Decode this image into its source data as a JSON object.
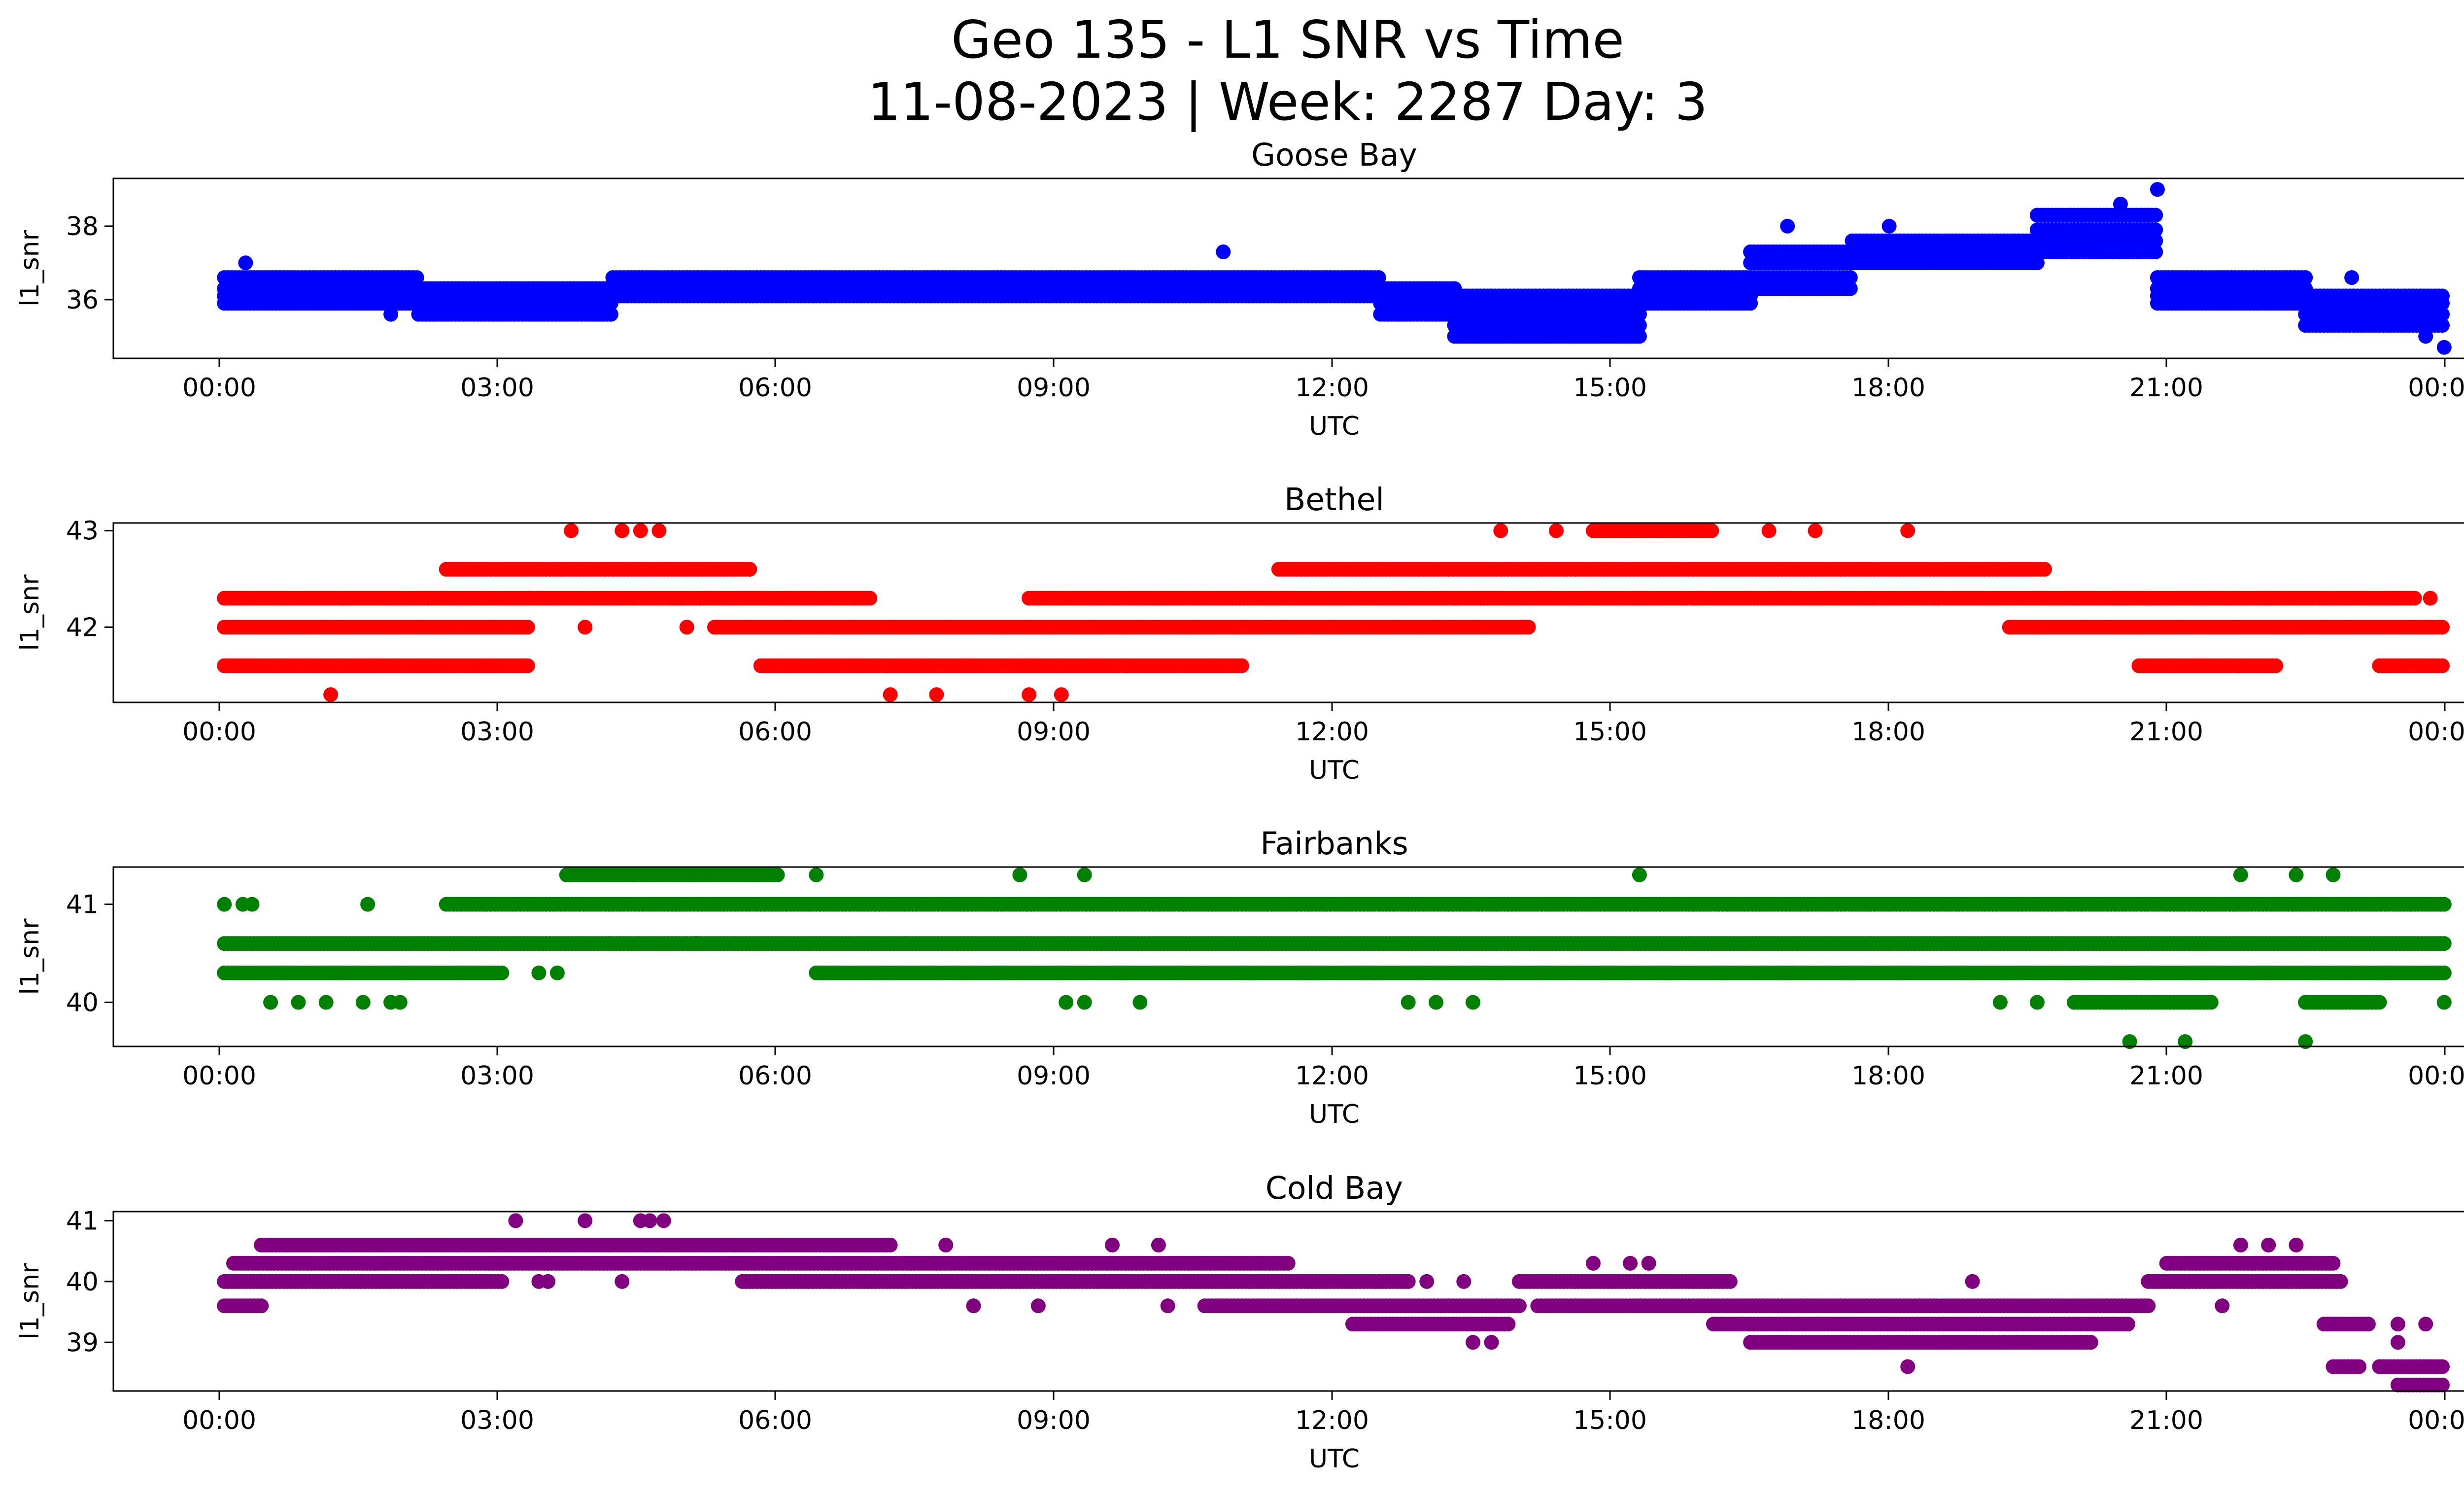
{
  "figure": {
    "title_line1": "Geo 135 - L1 SNR vs Time",
    "title_line2": "11-08-2023 | Week: 2287 Day: 3"
  },
  "chart_data": [
    {
      "type": "scatter",
      "title": "Goose Bay",
      "xlabel": "UTC",
      "ylabel": "l1_snr",
      "color": "#0000ff",
      "x_range_hours": [
        -1.2,
        25.2
      ],
      "x_ticks": [
        "00:00",
        "03:00",
        "06:00",
        "09:00",
        "12:00",
        "15:00",
        "18:00",
        "21:00",
        "00:00"
      ],
      "ylim": [
        34.4,
        39.3
      ],
      "y_ticks": [
        36,
        38
      ],
      "levels": [
        34.7,
        35.0,
        35.3,
        35.6,
        35.9,
        36.1,
        36.3,
        36.6,
        37.0,
        37.3,
        37.6,
        37.9,
        38.3,
        38.6,
        39.0
      ],
      "segments": [
        {
          "x": [
            0.0,
            2.1
          ],
          "levels": [
            36.6,
            36.3,
            36.1,
            35.9
          ]
        },
        {
          "x": [
            2.1,
            4.2
          ],
          "levels": [
            36.3,
            36.1,
            35.9,
            35.6
          ]
        },
        {
          "x": [
            4.2,
            8.0
          ],
          "levels": [
            36.6,
            36.3,
            36.1
          ]
        },
        {
          "x": [
            8.0,
            12.5
          ],
          "levels": [
            36.6,
            36.3,
            36.1
          ]
        },
        {
          "x": [
            12.5,
            13.3
          ],
          "levels": [
            36.3,
            36.1,
            35.9,
            35.6
          ]
        },
        {
          "x": [
            13.3,
            15.3
          ],
          "levels": [
            36.1,
            35.9,
            35.6,
            35.3,
            35.0
          ]
        },
        {
          "x": [
            15.3,
            16.5
          ],
          "levels": [
            36.6,
            36.3,
            36.1,
            35.9
          ]
        },
        {
          "x": [
            16.5,
            17.6
          ],
          "levels": [
            37.3,
            37.0,
            36.6,
            36.3
          ]
        },
        {
          "x": [
            17.6,
            19.6
          ],
          "levels": [
            37.6,
            37.3,
            37.0
          ]
        },
        {
          "x": [
            19.6,
            20.9
          ],
          "levels": [
            38.3,
            37.9,
            37.6,
            37.3
          ]
        },
        {
          "x": [
            20.9,
            22.5
          ],
          "levels": [
            36.6,
            36.3,
            36.1,
            35.9
          ]
        },
        {
          "x": [
            22.5,
            24.0
          ],
          "levels": [
            36.1,
            35.9,
            35.6,
            35.3
          ]
        }
      ],
      "points": [
        [
          0.23,
          37.0
        ],
        [
          1.8,
          35.6
        ],
        [
          2.3,
          35.6
        ],
        [
          10.8,
          37.3
        ],
        [
          16.9,
          38.0
        ],
        [
          18.0,
          38.0
        ],
        [
          20.5,
          38.6
        ],
        [
          20.9,
          39.0
        ],
        [
          23.8,
          35.0
        ],
        [
          24.0,
          34.7
        ],
        [
          23.0,
          36.6
        ]
      ]
    },
    {
      "type": "scatter",
      "title": "Bethel",
      "xlabel": "UTC",
      "ylabel": "l1_snr",
      "color": "#ff0000",
      "x_range_hours": [
        -1.2,
        25.2
      ],
      "x_ticks": [
        "00:00",
        "03:00",
        "06:00",
        "09:00",
        "12:00",
        "15:00",
        "18:00",
        "21:00",
        "00:00"
      ],
      "ylim": [
        41.22,
        43.08
      ],
      "y_ticks": [
        42,
        43
      ],
      "levels": [
        41.3,
        41.6,
        42.0,
        42.3,
        42.6,
        43.0
      ],
      "segments": [
        {
          "x": [
            0.0,
            3.3
          ],
          "levels": [
            42.3,
            42.0,
            41.6
          ]
        },
        {
          "x": [
            2.4,
            5.7
          ],
          "levels": [
            42.6
          ]
        },
        {
          "x": [
            3.3,
            6.5
          ],
          "levels": [
            42.3
          ]
        },
        {
          "x": [
            5.3,
            14.1
          ],
          "levels": [
            42.0
          ]
        },
        {
          "x": [
            5.8,
            11.0
          ],
          "levels": [
            41.6
          ]
        },
        {
          "x": [
            6.5,
            7.0
          ],
          "levels": [
            42.3
          ]
        },
        {
          "x": [
            8.7,
            20.8
          ],
          "levels": [
            42.3
          ]
        },
        {
          "x": [
            11.4,
            19.7
          ],
          "levels": [
            42.6
          ]
        },
        {
          "x": [
            14.8,
            16.1
          ],
          "levels": [
            43.0
          ]
        },
        {
          "x": [
            19.3,
            24.0
          ],
          "levels": [
            42.0
          ]
        },
        {
          "x": [
            20.7,
            22.2
          ],
          "levels": [
            41.6
          ]
        },
        {
          "x": [
            20.8,
            23.7
          ],
          "levels": [
            42.3
          ]
        },
        {
          "x": [
            23.3,
            24.0
          ],
          "levels": [
            41.6
          ]
        }
      ],
      "points": [
        [
          1.15,
          41.3
        ],
        [
          3.75,
          43.0
        ],
        [
          4.3,
          43.0
        ],
        [
          4.5,
          43.0
        ],
        [
          4.7,
          43.0
        ],
        [
          7.2,
          41.3
        ],
        [
          7.7,
          41.3
        ],
        [
          8.7,
          41.3
        ],
        [
          9.05,
          41.3
        ],
        [
          13.8,
          43.0
        ],
        [
          14.4,
          43.0
        ],
        [
          16.7,
          43.0
        ],
        [
          17.2,
          43.0
        ],
        [
          18.2,
          43.0
        ],
        [
          3.9,
          42.0
        ],
        [
          5.0,
          42.0
        ],
        [
          23.85,
          42.3
        ]
      ]
    },
    {
      "type": "scatter",
      "title": "Fairbanks",
      "xlabel": "UTC",
      "ylabel": "l1_snr",
      "color": "#008000",
      "x_range_hours": [
        -1.2,
        25.2
      ],
      "x_ticks": [
        "00:00",
        "03:00",
        "06:00",
        "09:00",
        "12:00",
        "15:00",
        "18:00",
        "21:00",
        "00:00"
      ],
      "ylim": [
        39.55,
        41.38
      ],
      "y_ticks": [
        40,
        41
      ],
      "levels": [
        39.6,
        40.0,
        40.3,
        40.6,
        41.0,
        41.3
      ],
      "segments": [
        {
          "x": [
            0.0,
            24.0
          ],
          "levels": [
            40.6
          ]
        },
        {
          "x": [
            0.0,
            3.0
          ],
          "levels": [
            40.3
          ]
        },
        {
          "x": [
            2.4,
            24.0
          ],
          "levels": [
            41.0
          ]
        },
        {
          "x": [
            6.4,
            24.0
          ],
          "levels": [
            40.3
          ]
        },
        {
          "x": [
            3.7,
            6.0
          ],
          "levels": [
            41.3
          ]
        },
        {
          "x": [
            20.0,
            21.5
          ],
          "levels": [
            40.0
          ]
        },
        {
          "x": [
            22.5,
            23.3
          ],
          "levels": [
            40.0
          ]
        }
      ],
      "points": [
        [
          0.0,
          41.0
        ],
        [
          0.2,
          41.0
        ],
        [
          0.3,
          41.0
        ],
        [
          1.55,
          41.0
        ],
        [
          0.5,
          40.0
        ],
        [
          0.8,
          40.0
        ],
        [
          1.1,
          40.0
        ],
        [
          1.5,
          40.0
        ],
        [
          1.8,
          40.0
        ],
        [
          1.9,
          40.0
        ],
        [
          3.4,
          40.3
        ],
        [
          3.6,
          40.3
        ],
        [
          5.1,
          40.6
        ],
        [
          6.4,
          41.3
        ],
        [
          8.6,
          41.3
        ],
        [
          9.3,
          41.3
        ],
        [
          9.1,
          40.0
        ],
        [
          9.3,
          40.0
        ],
        [
          9.9,
          40.0
        ],
        [
          12.8,
          40.0
        ],
        [
          13.1,
          40.0
        ],
        [
          13.5,
          40.0
        ],
        [
          15.3,
          41.3
        ],
        [
          19.2,
          40.0
        ],
        [
          19.6,
          40.0
        ],
        [
          24.0,
          40.0
        ],
        [
          20.6,
          39.6
        ],
        [
          21.2,
          39.6
        ],
        [
          22.5,
          39.6
        ],
        [
          21.8,
          41.3
        ],
        [
          22.4,
          41.3
        ],
        [
          22.8,
          41.3
        ]
      ]
    },
    {
      "type": "scatter",
      "title": "Cold Bay",
      "xlabel": "UTC",
      "ylabel": "l1_snr",
      "color": "#800080",
      "x_range_hours": [
        -1.2,
        25.2
      ],
      "x_ticks": [
        "00:00",
        "03:00",
        "06:00",
        "09:00",
        "12:00",
        "15:00",
        "18:00",
        "21:00",
        "00:00"
      ],
      "ylim": [
        38.2,
        41.15
      ],
      "y_ticks": [
        39,
        40,
        41
      ],
      "levels": [
        38.3,
        38.6,
        39.0,
        39.3,
        39.6,
        40.0,
        40.3,
        40.6,
        41.0
      ],
      "segments": [
        {
          "x": [
            0.0,
            0.4
          ],
          "levels": [
            39.6
          ]
        },
        {
          "x": [
            0.0,
            3.0
          ],
          "levels": [
            40.0
          ]
        },
        {
          "x": [
            0.1,
            11.5
          ],
          "levels": [
            40.3
          ]
        },
        {
          "x": [
            0.4,
            7.2
          ],
          "levels": [
            40.6
          ]
        },
        {
          "x": [
            5.6,
            12.8
          ],
          "levels": [
            40.0
          ]
        },
        {
          "x": [
            10.6,
            14.0
          ],
          "levels": [
            39.6
          ]
        },
        {
          "x": [
            12.2,
            13.9
          ],
          "levels": [
            39.3
          ]
        },
        {
          "x": [
            14.0,
            16.3
          ],
          "levels": [
            40.0
          ]
        },
        {
          "x": [
            14.2,
            20.8
          ],
          "levels": [
            39.6
          ]
        },
        {
          "x": [
            16.1,
            20.6
          ],
          "levels": [
            39.3
          ]
        },
        {
          "x": [
            16.5,
            20.2
          ],
          "levels": [
            39.0
          ]
        },
        {
          "x": [
            20.8,
            22.9
          ],
          "levels": [
            40.0
          ]
        },
        {
          "x": [
            21.0,
            22.8
          ],
          "levels": [
            40.3
          ]
        },
        {
          "x": [
            22.7,
            23.2
          ],
          "levels": [
            39.3
          ]
        },
        {
          "x": [
            22.8,
            23.1
          ],
          "levels": [
            38.6
          ]
        },
        {
          "x": [
            23.3,
            24.0
          ],
          "levels": [
            38.6
          ]
        },
        {
          "x": [
            23.5,
            24.0
          ],
          "levels": [
            38.3
          ]
        }
      ],
      "points": [
        [
          3.15,
          41.0
        ],
        [
          3.9,
          41.0
        ],
        [
          4.5,
          41.0
        ],
        [
          4.6,
          41.0
        ],
        [
          4.75,
          41.0
        ],
        [
          3.4,
          40.0
        ],
        [
          3.5,
          40.0
        ],
        [
          4.3,
          40.0
        ],
        [
          7.8,
          40.6
        ],
        [
          8.1,
          39.6
        ],
        [
          8.8,
          39.6
        ],
        [
          10.2,
          39.6
        ],
        [
          9.6,
          40.6
        ],
        [
          10.1,
          40.6
        ],
        [
          13.0,
          40.0
        ],
        [
          13.4,
          40.0
        ],
        [
          13.7,
          39.0
        ],
        [
          13.5,
          39.0
        ],
        [
          14.8,
          40.3
        ],
        [
          15.2,
          40.3
        ],
        [
          15.4,
          40.3
        ],
        [
          18.2,
          38.6
        ],
        [
          18.9,
          40.0
        ],
        [
          21.6,
          39.6
        ],
        [
          21.8,
          40.6
        ],
        [
          22.1,
          40.6
        ],
        [
          22.4,
          40.6
        ],
        [
          23.5,
          39.3
        ],
        [
          23.8,
          39.3
        ],
        [
          23.5,
          39.0
        ]
      ]
    }
  ]
}
